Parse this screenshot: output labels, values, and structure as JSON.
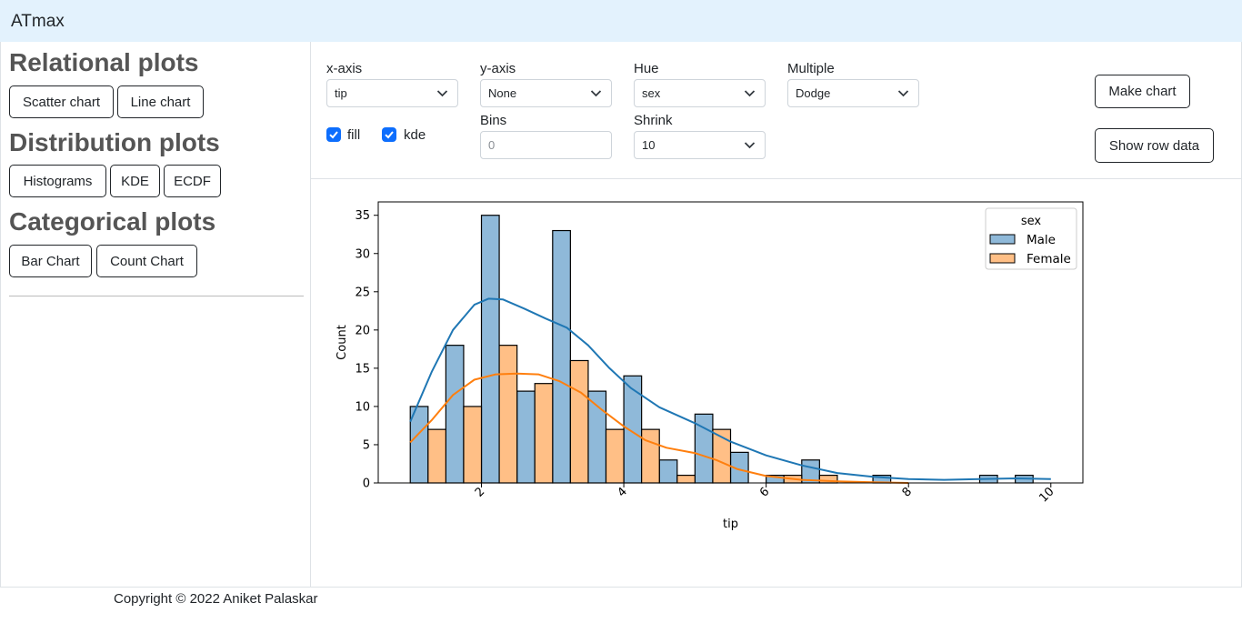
{
  "navbar": {
    "brand": "ATmax"
  },
  "sidebar": {
    "relational": {
      "heading": "Relational plots",
      "buttons": [
        "Scatter chart",
        "Line chart"
      ]
    },
    "distribution": {
      "heading": "Distribution plots",
      "buttons": [
        "Histograms",
        "KDE",
        "ECDF"
      ]
    },
    "categorical": {
      "heading": "Categorical plots",
      "buttons": [
        "Bar Chart",
        "Count Chart"
      ]
    }
  },
  "controls": {
    "xaxis": {
      "label": "x-axis",
      "value": "tip"
    },
    "yaxis": {
      "label": "y-axis",
      "value": "None"
    },
    "hue": {
      "label": "Hue",
      "value": "sex"
    },
    "multiple": {
      "label": "Multiple",
      "value": "Dodge"
    },
    "bins": {
      "label": "Bins",
      "placeholder": "0"
    },
    "shrink": {
      "label": "Shrink",
      "value": "10"
    },
    "fill": {
      "label": "fill",
      "checked": true
    },
    "kde": {
      "label": "kde",
      "checked": true
    },
    "make_chart": "Make chart",
    "show_row_data": "Show row data"
  },
  "chart_data": {
    "type": "bar",
    "xlabel": "tip",
    "ylabel": "Count",
    "xlim": [
      0.55,
      10.45
    ],
    "ylim": [
      0,
      36.75
    ],
    "xticks": [
      2,
      4,
      6,
      8,
      10
    ],
    "yticks": [
      0,
      5,
      10,
      15,
      20,
      25,
      30,
      35
    ],
    "legend": {
      "title": "sex",
      "position": "top-right"
    },
    "bin_edges": [
      1.0,
      1.5,
      2.0,
      2.5,
      3.0,
      3.5,
      4.0,
      4.5,
      5.0,
      5.5,
      6.0,
      6.5,
      7.0,
      7.5,
      8.0,
      8.5,
      9.0,
      9.5,
      10.0
    ],
    "series": [
      {
        "name": "Male",
        "color": "#1f77b4",
        "fill": "#8fb9d9",
        "values": [
          10,
          18,
          35,
          12,
          33,
          12,
          14,
          3,
          9,
          4,
          1,
          3,
          0,
          1,
          0,
          0,
          1,
          1
        ],
        "kde": {
          "x": [
            1.0,
            1.3,
            1.6,
            1.9,
            2.1,
            2.3,
            2.6,
            2.9,
            3.2,
            3.5,
            3.8,
            4.1,
            4.5,
            5.0,
            5.5,
            6.0,
            6.5,
            7.0,
            7.5,
            8.0,
            8.5,
            9.0,
            9.5,
            10.0
          ],
          "y": [
            8,
            14.5,
            20,
            23.3,
            24.1,
            24,
            22.8,
            21.5,
            20.3,
            18,
            15,
            12.4,
            9.9,
            7.8,
            5.4,
            3.6,
            2.3,
            1.3,
            0.8,
            0.5,
            0.4,
            0.5,
            0.6,
            0.5
          ]
        }
      },
      {
        "name": "Female",
        "color": "#ff7f0e",
        "fill": "#ffbf86",
        "values": [
          7,
          10,
          18,
          13,
          16,
          7,
          7,
          1,
          7,
          0,
          1,
          1,
          0,
          0,
          0,
          0,
          0,
          0
        ],
        "kde": {
          "x": [
            1.0,
            1.3,
            1.6,
            1.9,
            2.2,
            2.5,
            2.8,
            3.1,
            3.4,
            3.7,
            4.0,
            4.3,
            4.6,
            5.0,
            5.3,
            5.6,
            6.0,
            6.5,
            7.0,
            7.5,
            8.0
          ],
          "y": [
            5.3,
            8.2,
            11.5,
            13.5,
            14.2,
            14.3,
            14.2,
            13.3,
            11.8,
            9.5,
            7.4,
            5.6,
            4.6,
            3.9,
            3.0,
            1.8,
            0.9,
            0.4,
            0.2,
            0.1,
            0.0
          ]
        }
      }
    ]
  },
  "footer": {
    "text": "Copyright © 2022 Aniket Palaskar"
  }
}
